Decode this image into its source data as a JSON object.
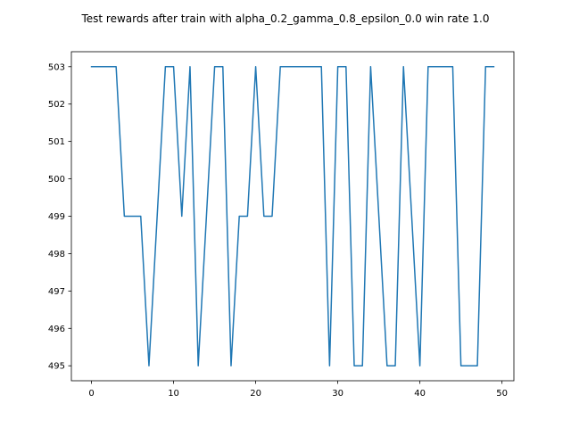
{
  "chart_data": {
    "type": "line",
    "title": "Test rewards after train with alpha_0.2_gamma_0.8_epsilon_0.0 win rate 1.0",
    "xlabel": "",
    "ylabel": "",
    "xlim": [
      -2.45,
      51.45
    ],
    "ylim": [
      494.6,
      503.4
    ],
    "x_ticks": [
      0,
      10,
      20,
      30,
      40,
      50
    ],
    "y_ticks": [
      495,
      496,
      497,
      498,
      499,
      500,
      501,
      502,
      503
    ],
    "grid": false,
    "legend": "none",
    "series": [
      {
        "color": "#1f77b4",
        "x": [
          0,
          1,
          2,
          3,
          4,
          5,
          6,
          7,
          8,
          9,
          10,
          11,
          12,
          13,
          14,
          15,
          16,
          17,
          18,
          19,
          20,
          21,
          22,
          23,
          24,
          25,
          26,
          27,
          28,
          29,
          30,
          31,
          32,
          33,
          34,
          35,
          36,
          37,
          38,
          39,
          40,
          41,
          42,
          43,
          44,
          45,
          46,
          47,
          48,
          49
        ],
        "y": [
          503,
          503,
          503,
          503,
          499,
          499,
          499,
          495,
          499,
          503,
          503,
          499,
          503,
          495,
          499,
          503,
          503,
          495,
          499,
          499,
          503,
          499,
          499,
          503,
          503,
          503,
          503,
          503,
          503,
          495,
          503,
          503,
          495,
          495,
          503,
          499,
          495,
          495,
          503,
          499,
          495,
          503,
          503,
          503,
          503,
          495,
          495,
          495,
          503,
          503
        ]
      }
    ]
  }
}
